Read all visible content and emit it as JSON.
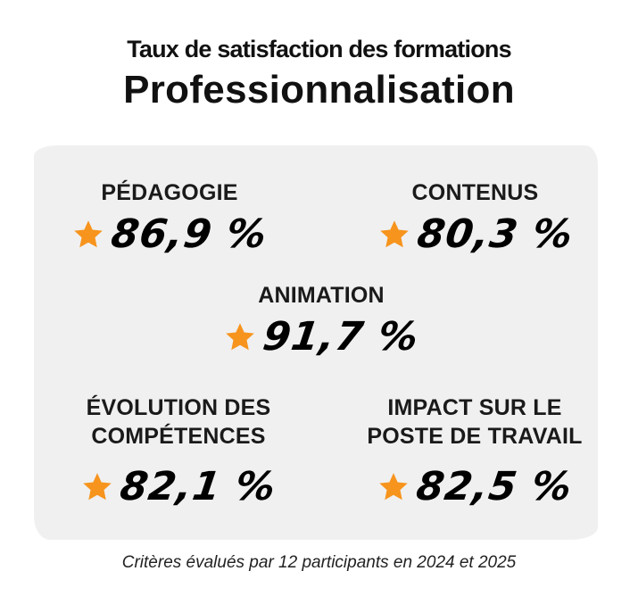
{
  "header": {
    "subtitle": "Taux de satisfaction des formations",
    "title": "Professionnalisation"
  },
  "criteria": {
    "pedagogie": {
      "label": "PÉDAGOGIE",
      "value": "86,9 %"
    },
    "contenus": {
      "label": "CONTENUS",
      "value": "80,3 %"
    },
    "animation": {
      "label": "ANIMATION",
      "value": "91,7 %"
    },
    "evolution": {
      "label_line1": "ÉVOLUTION DES",
      "label_line2": "COMPÉTENCES",
      "value": "82,1 %"
    },
    "impact": {
      "label_line1": "IMPACT SUR LE",
      "label_line2": "POSTE DE TRAVAIL",
      "value": "82,5 %"
    }
  },
  "footer": {
    "note": "Critères évalués par 12 participants en 2024 et 2025"
  },
  "colors": {
    "star": "#f7941d",
    "panel": "#f0f0f0",
    "text": "#111111"
  },
  "icons": {
    "rating": "star-icon"
  }
}
